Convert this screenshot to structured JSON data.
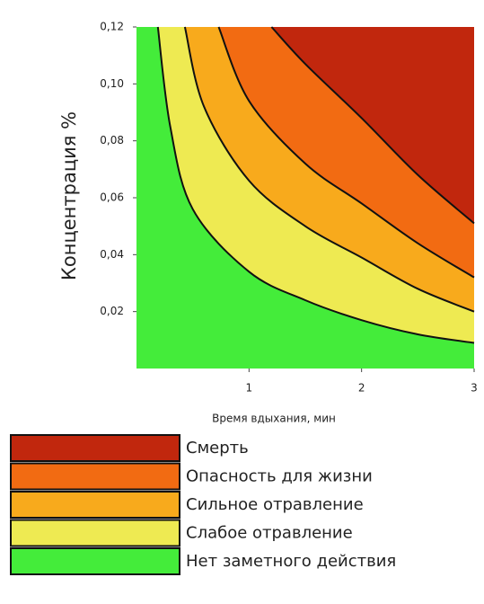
{
  "chart_data": {
    "type": "region",
    "xlabel": "Время вдыхания, мин",
    "ylabel": "Концентрация %",
    "xlim": [
      0,
      3
    ],
    "xticks": [
      1,
      2,
      3
    ],
    "ylim": [
      0,
      0.12
    ],
    "yticks": [
      {
        "value": 0.02,
        "label": "0,02"
      },
      {
        "value": 0.04,
        "label": "0,04"
      },
      {
        "value": 0.06,
        "label": "0,06"
      },
      {
        "value": 0.08,
        "label": "0,08"
      },
      {
        "value": 0.1,
        "label": "0,10"
      },
      {
        "value": 0.12,
        "label": "0,12"
      }
    ],
    "series": [
      {
        "name": "Смерть",
        "color": "#c1270d",
        "x": [
          1.2,
          1.5,
          2,
          2.5,
          3
        ],
        "values": [
          0.12,
          0.107,
          0.088,
          0.068,
          0.051
        ]
      },
      {
        "name": "Опасность для жизни",
        "color": "#f26b12",
        "x": [
          0.73,
          1,
          1.5,
          2,
          2.5,
          3
        ],
        "values": [
          0.12,
          0.094,
          0.072,
          0.058,
          0.044,
          0.032
        ]
      },
      {
        "name": "Сильное отравление",
        "color": "#f8aa1c",
        "x": [
          0.43,
          0.6,
          1,
          1.5,
          2,
          2.5,
          3
        ],
        "values": [
          0.12,
          0.092,
          0.066,
          0.05,
          0.039,
          0.028,
          0.02
        ]
      },
      {
        "name": "Слабое отравление",
        "color": "#eeea52",
        "x": [
          0.19,
          0.3,
          0.5,
          1,
          1.5,
          2,
          2.5,
          3
        ],
        "values": [
          0.12,
          0.085,
          0.056,
          0.034,
          0.024,
          0.017,
          0.012,
          0.009
        ]
      },
      {
        "name": "Нет заметного действия",
        "color": "#44ec3a"
      }
    ]
  }
}
